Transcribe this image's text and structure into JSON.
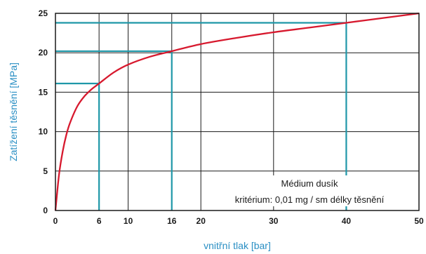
{
  "chart_data": {
    "type": "line",
    "xlabel": "vnitřní tlak [bar]",
    "ylabel": "Zatížení těsnění [MPa]",
    "xlim": [
      0,
      50
    ],
    "ylim": [
      0,
      25
    ],
    "x_ticks": [
      0,
      6,
      10,
      16,
      20,
      30,
      40,
      50
    ],
    "y_ticks": [
      0,
      5,
      10,
      15,
      20,
      25
    ],
    "grid": true,
    "annotation": {
      "line1": "Médium dusík",
      "line2": "kritérium: 0,01 mg / sm  délky těsnění"
    },
    "series": [
      {
        "color": "#d7192e",
        "x": [
          0,
          0.5,
          1,
          1.5,
          2,
          3,
          4,
          5,
          6,
          8,
          10,
          13,
          16,
          20,
          25,
          30,
          35,
          40,
          45,
          50
        ],
        "y": [
          0,
          4.6,
          7.5,
          9.6,
          11.1,
          13.2,
          14.5,
          15.4,
          16.1,
          17.5,
          18.5,
          19.5,
          20.2,
          21.1,
          21.9,
          22.6,
          23.2,
          23.8,
          24.4,
          25.0
        ]
      }
    ],
    "reference_lines": [
      {
        "x": 6,
        "y": 16.1
      },
      {
        "x": 16,
        "y": 20.2
      },
      {
        "x": 40,
        "y": 23.8
      }
    ],
    "colors": {
      "curve": "#d7192e",
      "reference": "#1f97a8",
      "axis_title": "#2a8fc4",
      "grid": "#1a1a1a"
    }
  }
}
